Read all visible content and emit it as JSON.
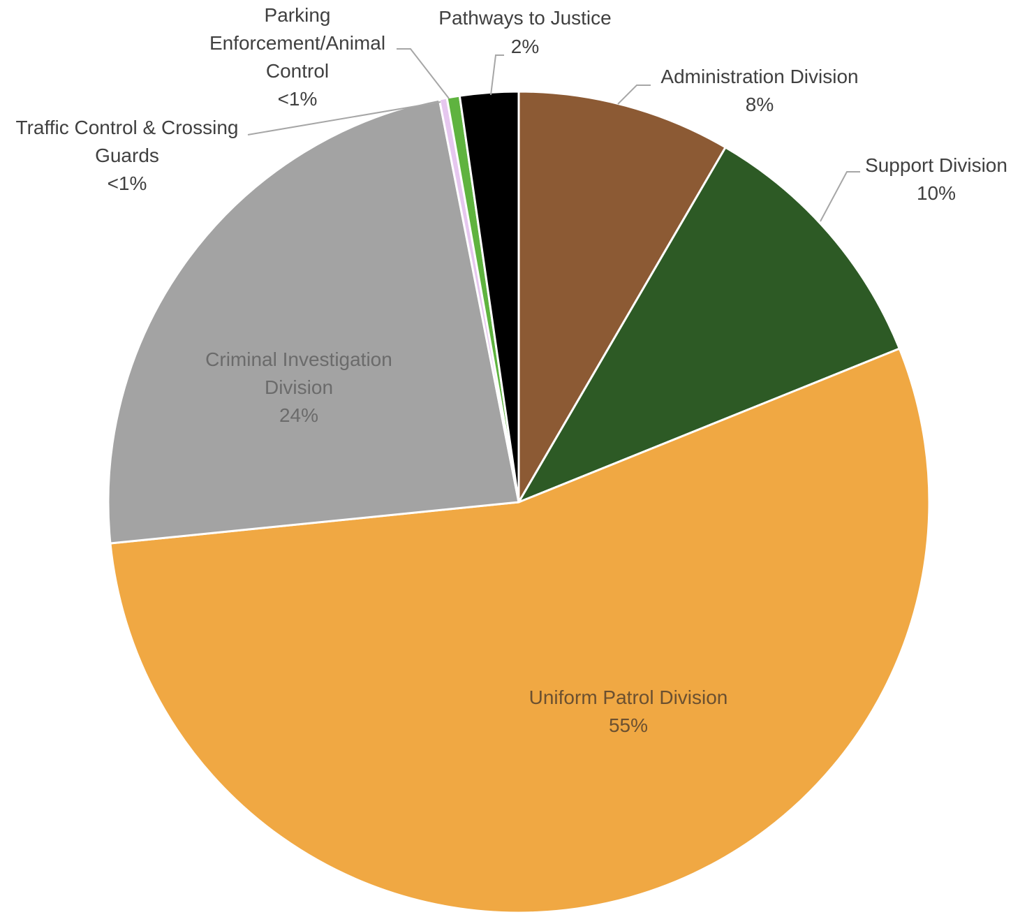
{
  "chart_data": {
    "type": "pie",
    "title": "",
    "slices": [
      {
        "name": "Administration Division",
        "label": "8%",
        "value": 8.4,
        "color": "#8c5a34"
      },
      {
        "name": "Support Division",
        "label": "10%",
        "value": 10.5,
        "color": "#2d5a25"
      },
      {
        "name": "Uniform Patrol Division",
        "label": "55%",
        "value": 54.5,
        "color": "#f0a843"
      },
      {
        "name": "Criminal Investigation Division",
        "label": "24%",
        "value": 23.5,
        "color": "#a3a3a3"
      },
      {
        "name": "Traffic Control & Crossing Guards",
        "label": "<1%",
        "value": 0.3,
        "color": "#e6c7ef"
      },
      {
        "name": "Parking Enforcement/Animal Control",
        "label": "<1%",
        "value": 0.5,
        "color": "#5fb33f"
      },
      {
        "name": "Pathways to Justice",
        "label": "2%",
        "value": 2.3,
        "color": "#000000"
      }
    ]
  }
}
